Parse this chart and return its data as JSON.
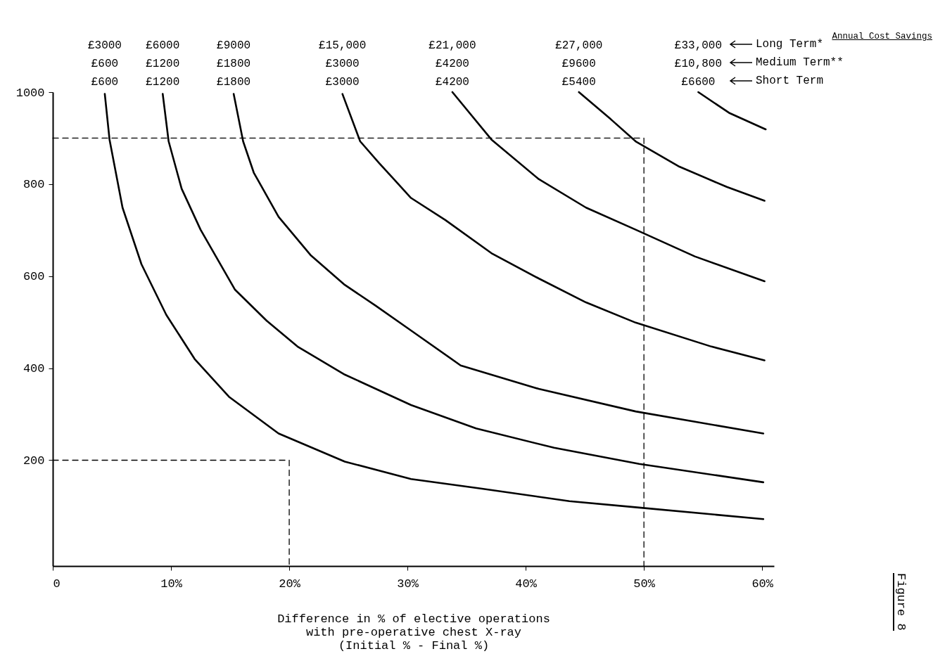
{
  "chart_data": {
    "type": "line",
    "xlabel": "Difference in % of elective operations\nwith pre-operative chest X-ray\n(Initial % - Final %)",
    "xlim": [
      0,
      61
    ],
    "ylim": [
      -30,
      1000
    ],
    "xticks": [
      0,
      {
        "value": 10,
        "label": "10%"
      },
      {
        "value": 20,
        "label": "20%"
      },
      {
        "value": 30,
        "label": "30%"
      },
      {
        "value": 40,
        "label": "40%"
      },
      {
        "value": 50,
        "label": "50%"
      },
      {
        "value": 60,
        "label": "60%"
      }
    ],
    "yticks": [
      200,
      400,
      600,
      800,
      1000
    ],
    "grid": false,
    "series": [
      {
        "color": "#000000",
        "x": [
          4.4,
          4.8,
          5.9,
          7.5,
          9.6,
          12.0,
          14.9,
          19.1,
          24.7,
          30.3,
          36.3,
          43.7,
          49.6,
          60.1
        ],
        "values": [
          996,
          897,
          749,
          626,
          516,
          420,
          338,
          258,
          197,
          159,
          138,
          111,
          97,
          72
        ]
      },
      {
        "color": "#000000",
        "x": [
          9.3,
          9.8,
          10.9,
          12.5,
          15.4,
          18.1,
          20.7,
          24.7,
          30.3,
          35.8,
          42.4,
          49.6,
          60.1
        ],
        "values": [
          996,
          893,
          790,
          701,
          571,
          503,
          447,
          386,
          320,
          269,
          227,
          192,
          152
        ]
      },
      {
        "color": "#000000",
        "x": [
          15.3,
          16.1,
          17.0,
          19.1,
          21.8,
          24.7,
          27.3,
          30.3,
          34.5,
          41.1,
          49.3,
          60.1
        ],
        "values": [
          996,
          893,
          825,
          729,
          646,
          581,
          536,
          482,
          406,
          355,
          306,
          258
        ]
      },
      {
        "color": "#000000",
        "x": [
          24.5,
          26.0,
          27.6,
          30.3,
          33.2,
          37.1,
          41.1,
          45.1,
          49.3,
          55.7,
          60.2
        ],
        "values": [
          996,
          893,
          846,
          770,
          722,
          650,
          595,
          543,
          499,
          447,
          417
        ]
      },
      {
        "color": "#000000",
        "x": [
          33.8,
          37.1,
          41.1,
          45.1,
          49.3,
          54.3,
          60.2
        ],
        "values": [
          1000,
          897,
          811,
          749,
          701,
          643,
          589
        ]
      },
      {
        "color": "#000000",
        "x": [
          44.5,
          47.2,
          49.3,
          53.0,
          57.0,
          60.2
        ],
        "values": [
          1000,
          941,
          893,
          838,
          794,
          764
        ]
      },
      {
        "color": "#000000",
        "x": [
          54.6,
          57.2,
          60.3
        ],
        "values": [
          1000,
          955,
          919
        ]
      },
      {
        "color": "#000000",
        "line_style": "dashed",
        "x": [
          0,
          20,
          20
        ],
        "values": [
          200,
          200,
          -30
        ]
      },
      {
        "color": "#000000",
        "line_style": "dashed",
        "x": [
          0,
          50,
          50
        ],
        "values": [
          900,
          900,
          -30
        ]
      }
    ],
    "annotations": [
      "Annual Cost Savings",
      "Long Term*",
      "Medium Term**",
      "Short Term",
      "Figure 8",
      "£3000",
      "£600",
      "£600",
      "£6000",
      "£1200",
      "£1200",
      "£9000",
      "£1800",
      "£1800",
      "£15,000",
      "£3000",
      "£3000",
      "£21,000",
      "£4200",
      "£4200",
      "£27,000",
      "£9600",
      "£5400",
      "£33,000",
      "£10,800",
      "£6600"
    ]
  }
}
